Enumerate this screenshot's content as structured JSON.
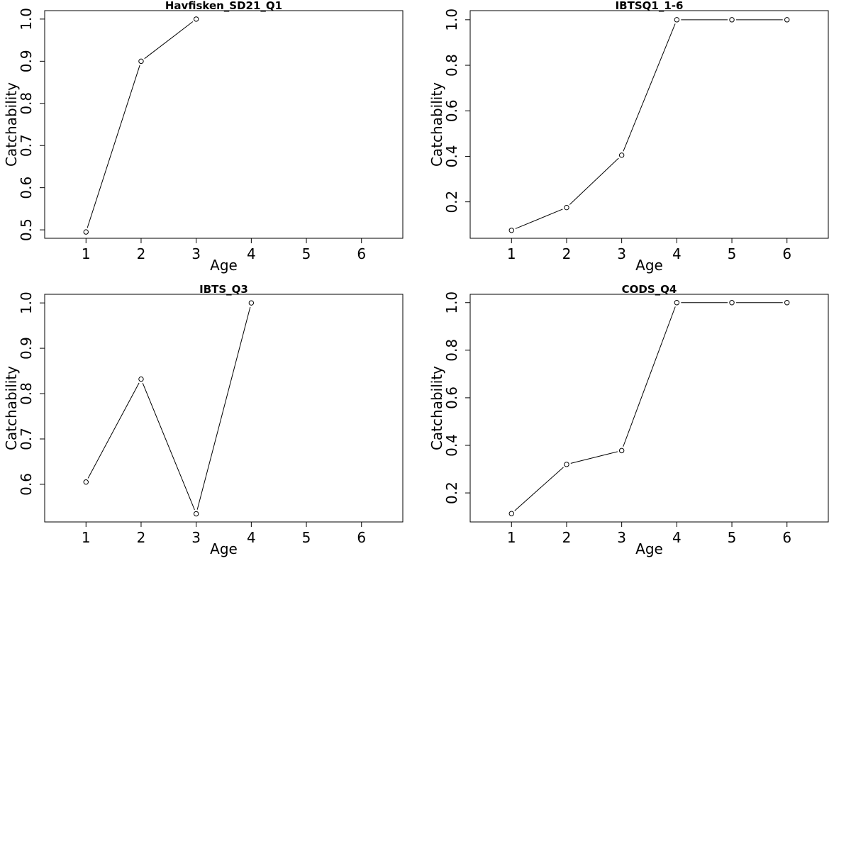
{
  "chart_data": [
    {
      "type": "line",
      "title": "Havfisken_SD21_Q1",
      "xlabel": "Age",
      "ylabel": "Catchability",
      "xlim": [
        0.25,
        6.75
      ],
      "ylim": [
        0.48,
        1.02
      ],
      "xticks": [
        "1",
        "2",
        "3",
        "4",
        "5",
        "6"
      ],
      "yticks": [
        "0.5",
        "0.6",
        "0.7",
        "0.8",
        "0.9",
        "1.0"
      ],
      "x": [
        1,
        2,
        3
      ],
      "values": [
        0.495,
        0.9,
        1.0
      ],
      "markers": "open-circle",
      "grid": false,
      "legend": "none"
    },
    {
      "type": "line",
      "title": "IBTSQ1_1-6",
      "xlabel": "Age",
      "ylabel": "Catchability",
      "xlim": [
        0.25,
        6.75
      ],
      "ylim": [
        0.04,
        1.04
      ],
      "xticks": [
        "1",
        "2",
        "3",
        "4",
        "5",
        "6"
      ],
      "yticks": [
        "0.2",
        "0.4",
        "0.6",
        "0.8",
        "1.0"
      ],
      "x": [
        1,
        2,
        3,
        4,
        5,
        6
      ],
      "values": [
        0.075,
        0.175,
        0.405,
        1.0,
        1.0,
        1.0
      ],
      "markers": "open-circle",
      "grid": false,
      "legend": "none"
    },
    {
      "type": "line",
      "title": "IBTS_Q3",
      "xlabel": "Age",
      "ylabel": "Catchability",
      "xlim": [
        0.25,
        6.75
      ],
      "ylim": [
        0.517,
        1.019
      ],
      "xticks": [
        "1",
        "2",
        "3",
        "4",
        "5",
        "6"
      ],
      "yticks": [
        "0.6",
        "0.7",
        "0.8",
        "0.9",
        "1.0"
      ],
      "x": [
        1,
        2,
        3,
        4
      ],
      "values": [
        0.605,
        0.832,
        0.535,
        1.0
      ],
      "markers": "open-circle",
      "grid": false,
      "legend": "none"
    },
    {
      "type": "line",
      "title": "CODS_Q4",
      "xlabel": "Age",
      "ylabel": "Catchability",
      "xlim": [
        0.25,
        6.75
      ],
      "ylim": [
        0.078,
        1.035
      ],
      "xticks": [
        "1",
        "2",
        "3",
        "4",
        "5",
        "6"
      ],
      "yticks": [
        "0.2",
        "0.4",
        "0.6",
        "0.8",
        "1.0"
      ],
      "x": [
        1,
        2,
        3,
        4,
        5,
        6
      ],
      "values": [
        0.113,
        0.32,
        0.378,
        1.0,
        1.0,
        1.0
      ],
      "markers": "open-circle",
      "grid": false,
      "legend": "none"
    }
  ]
}
